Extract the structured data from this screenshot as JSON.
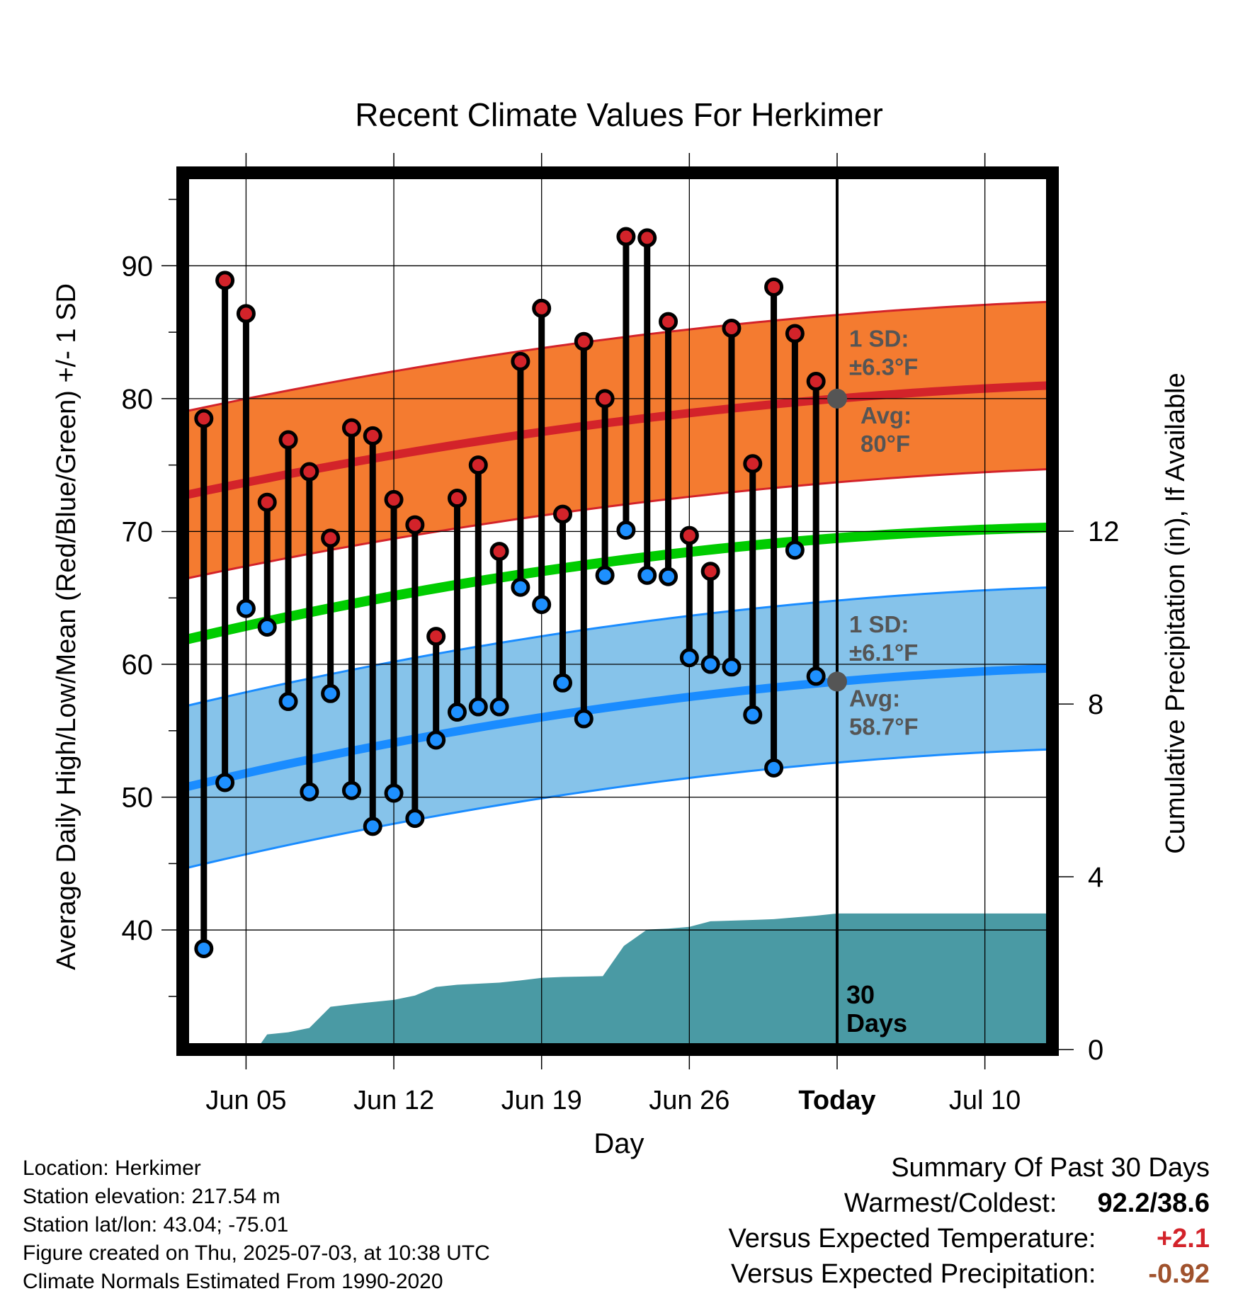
{
  "chart_data": {
    "type": "line",
    "title": "Recent Climate Values For Herkimer",
    "xlabel": "Day",
    "ylabel": "Average Daily High/Low/Mean (Red/Blue/Green) +/- 1 SD",
    "y2label": "Cumulative Precipitation (in), If Available",
    "ylim": [
      31,
      97
    ],
    "y2lim": [
      0,
      20.3
    ],
    "x_range_day": [
      0,
      41.2
    ],
    "grid": true,
    "x_ticks": [
      {
        "day": 3,
        "label": "Jun 05"
      },
      {
        "day": 10,
        "label": "Jun 12"
      },
      {
        "day": 17,
        "label": "Jun 19"
      },
      {
        "day": 24,
        "label": "Jun 26"
      },
      {
        "day": 31,
        "label": "Today"
      },
      {
        "day": 38,
        "label": "Jul 10"
      }
    ],
    "y_ticks": [
      40,
      50,
      60,
      70,
      80,
      90
    ],
    "y2_ticks": [
      0,
      4,
      8,
      12
    ],
    "today_day": 31,
    "period_label": [
      "30",
      "Days"
    ],
    "daily": {
      "day": [
        1,
        2,
        3,
        4,
        5,
        6,
        7,
        8,
        9,
        10,
        11,
        12,
        13,
        14,
        15,
        16,
        17,
        18,
        19,
        20,
        21,
        22,
        23,
        24,
        25,
        26,
        27,
        28,
        29,
        30
      ],
      "high": [
        78.5,
        88.9,
        86.4,
        72.2,
        76.9,
        74.5,
        69.5,
        77.8,
        77.2,
        72.4,
        70.5,
        62.1,
        72.5,
        75.0,
        68.5,
        82.8,
        86.8,
        71.3,
        84.3,
        80.0,
        92.2,
        92.1,
        85.8,
        69.7,
        67.0,
        85.3,
        75.1,
        88.4,
        84.9,
        81.3
      ],
      "low": [
        38.6,
        51.1,
        64.2,
        62.8,
        57.2,
        50.4,
        57.8,
        50.5,
        47.8,
        50.3,
        48.4,
        54.3,
        56.4,
        56.8,
        56.8,
        65.8,
        64.5,
        58.6,
        55.9,
        66.7,
        70.1,
        66.7,
        66.6,
        60.5,
        60.0,
        59.8,
        56.2,
        52.2,
        68.6,
        59.1
      ]
    },
    "normals": {
      "days": [
        0,
        31,
        41.2
      ],
      "high_mean": [
        72.7,
        80.0,
        81.0
      ],
      "high_sd": 6.3,
      "low_mean": [
        50.7,
        58.7,
        59.7
      ],
      "low_sd": 6.1,
      "mean": [
        61.8,
        69.5,
        70.3
      ]
    },
    "precip_cumulative": {
      "day": [
        0,
        3.5,
        4,
        5,
        6,
        7,
        8,
        9,
        10,
        11,
        12,
        13,
        15,
        16,
        17,
        18,
        19.9,
        20.9,
        22,
        23,
        24,
        25,
        27,
        28,
        29,
        30,
        31,
        41.2
      ],
      "value": [
        0,
        0,
        0.35,
        0.4,
        0.5,
        0.99,
        1.05,
        1.1,
        1.15,
        1.25,
        1.45,
        1.5,
        1.55,
        1.6,
        1.66,
        1.68,
        1.7,
        2.4,
        2.78,
        2.8,
        2.84,
        2.97,
        3.0,
        3.02,
        3.06,
        3.1,
        3.15,
        3.15
      ]
    },
    "annotations": {
      "high_sd_label": [
        "1 SD:",
        "±6.3°F"
      ],
      "high_avg_label": [
        "Avg:",
        "80°F"
      ],
      "low_sd_label": [
        "1 SD:",
        "±6.1°F"
      ],
      "low_avg_label": [
        "Avg:",
        "58.7°F"
      ]
    },
    "colors": {
      "high_band": "#f47b30",
      "high_line": "#d3232a",
      "low_band": "#86c3ea",
      "low_line": "#1a8cff",
      "mean_line": "#00cc00",
      "precip": "#4a9aa4",
      "high_marker": "#d3232a",
      "low_marker": "#1e90ff",
      "avg_dot": "#555555"
    }
  },
  "info": {
    "location": "Location: Herkimer",
    "elevation": "Station elevation: 217.54 m",
    "latlon": "Station lat/lon: 43.04; -75.01",
    "created": "Figure created on Thu, 2025-07-03, at 10:38 UTC",
    "normals": "Climate Normals Estimated From 1990-2020"
  },
  "summary": {
    "title": "Summary Of Past 30 Days",
    "warm_cold_label": "Warmest/Coldest:",
    "warm_cold_value": "92.2/38.6",
    "temp_label": "Versus Expected Temperature:",
    "temp_value": "+2.1",
    "temp_color": "#d3232a",
    "precip_label": "Versus Expected Precipitation:",
    "precip_value": "-0.92",
    "precip_color": "#a0522d"
  }
}
